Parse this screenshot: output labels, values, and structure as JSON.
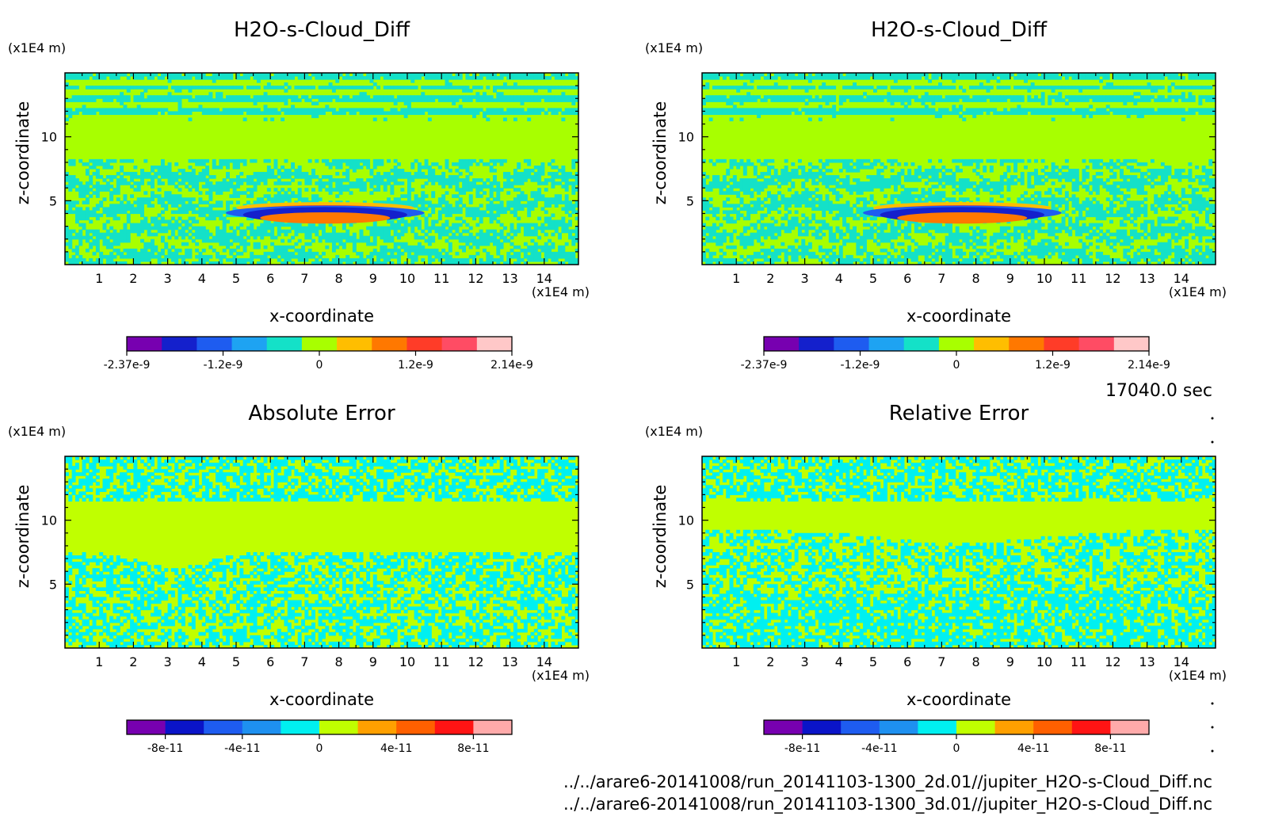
{
  "time_label": "17040.0 sec",
  "footer": {
    "line1": "../../arare6-20141008/run_20141103-1300_2d.01//jupiter_H2O-s-Cloud_Diff.nc",
    "line2": "../../arare6-20141008/run_20141103-1300_3d.01//jupiter_H2O-s-Cloud_Diff.nc"
  },
  "chart_data": [
    {
      "type": "heatmap",
      "title": "H2O-s-Cloud_Diff",
      "xlabel": "x-coordinate",
      "ylabel": "z-coordinate",
      "x_unit": "(x1E4 m)",
      "y_unit": "(x1E4 m)",
      "xlim": [
        0,
        15
      ],
      "ylim": [
        0,
        15
      ],
      "xticks": [
        1,
        2,
        3,
        4,
        5,
        6,
        7,
        8,
        9,
        10,
        11,
        12,
        13,
        14
      ],
      "yticks": [
        5,
        10
      ],
      "colorbar": {
        "colors": [
          "#7700b0",
          "#1420cc",
          "#1e5cf0",
          "#1ea3f2",
          "#14e1c8",
          "#a8ff00",
          "#ffbe00",
          "#ff7800",
          "#ff3c28",
          "#ff4c64",
          "#ffc8c8"
        ],
        "tick_labels": [
          "-2.37e-9",
          "-1.2e-9",
          "0",
          "1.2e-9",
          "2.14e-9"
        ]
      }
    },
    {
      "type": "heatmap",
      "title": "H2O-s-Cloud_Diff",
      "xlabel": "x-coordinate",
      "ylabel": "z-coordinate",
      "x_unit": "(x1E4 m)",
      "y_unit": "(x1E4 m)",
      "xlim": [
        0,
        15
      ],
      "ylim": [
        0,
        15
      ],
      "xticks": [
        1,
        2,
        3,
        4,
        5,
        6,
        7,
        8,
        9,
        10,
        11,
        12,
        13,
        14
      ],
      "yticks": [
        5,
        10
      ],
      "colorbar": {
        "colors": [
          "#7700b0",
          "#1420cc",
          "#1e5cf0",
          "#1ea3f2",
          "#14e1c8",
          "#a8ff00",
          "#ffbe00",
          "#ff7800",
          "#ff3c28",
          "#ff4c64",
          "#ffc8c8"
        ],
        "tick_labels": [
          "-2.37e-9",
          "-1.2e-9",
          "0",
          "1.2e-9",
          "2.14e-9"
        ]
      }
    },
    {
      "type": "heatmap",
      "title": "Absolute Error",
      "xlabel": "x-coordinate",
      "ylabel": "z-coordinate",
      "x_unit": "(x1E4 m)",
      "y_unit": "(x1E4 m)",
      "xlim": [
        0,
        15
      ],
      "ylim": [
        0,
        15
      ],
      "xticks": [
        1,
        2,
        3,
        4,
        5,
        6,
        7,
        8,
        9,
        10,
        11,
        12,
        13,
        14
      ],
      "yticks": [
        5,
        10
      ],
      "colorbar": {
        "colors": [
          "#7700b0",
          "#0a14c8",
          "#1e5cf0",
          "#1e90f0",
          "#00f0f0",
          "#c0ff00",
          "#ffa000",
          "#ff6000",
          "#ff1414",
          "#ffaaaa"
        ],
        "tick_labels": [
          "-8e-11",
          "-4e-11",
          "0",
          "4e-11",
          "8e-11"
        ]
      }
    },
    {
      "type": "heatmap",
      "title": "Relative Error",
      "xlabel": "x-coordinate",
      "ylabel": "z-coordinate",
      "x_unit": "(x1E4 m)",
      "y_unit": "(x1E4 m)",
      "xlim": [
        0,
        15
      ],
      "ylim": [
        0,
        15
      ],
      "xticks": [
        1,
        2,
        3,
        4,
        5,
        6,
        7,
        8,
        9,
        10,
        11,
        12,
        13,
        14
      ],
      "yticks": [
        5,
        10
      ],
      "colorbar": {
        "colors": [
          "#7700b0",
          "#0a14c8",
          "#1e5cf0",
          "#1e90f0",
          "#00f0f0",
          "#c0ff00",
          "#ffa000",
          "#ff6000",
          "#ff1414",
          "#ffaaaa"
        ],
        "tick_labels": [
          "-8e-11",
          "-4e-11",
          "0",
          "4e-11",
          "8e-11"
        ]
      }
    }
  ]
}
